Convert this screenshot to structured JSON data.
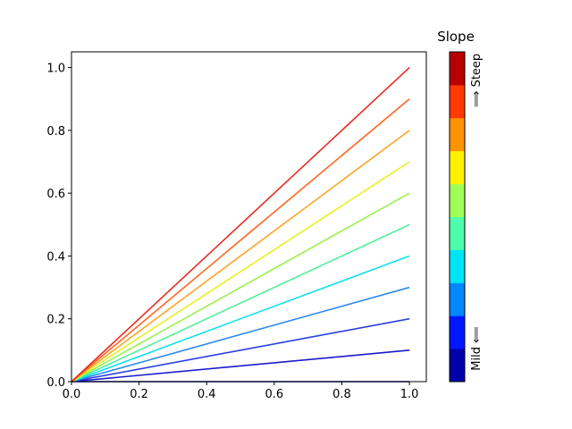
{
  "chart_data": {
    "type": "line",
    "x": [
      0,
      1
    ],
    "series": [
      {
        "color": "#00008f",
        "values": [
          0,
          0
        ]
      },
      {
        "color": "#1a1acc",
        "values": [
          0,
          0.1
        ]
      },
      {
        "color": "#2a3ee0",
        "values": [
          0,
          0.2
        ]
      },
      {
        "color": "#2a8aee",
        "values": [
          0,
          0.3
        ]
      },
      {
        "color": "#10e0ee",
        "values": [
          0,
          0.4
        ]
      },
      {
        "color": "#50f09a",
        "values": [
          0,
          0.5
        ]
      },
      {
        "color": "#9cf050",
        "values": [
          0,
          0.6
        ]
      },
      {
        "color": "#e8f020",
        "values": [
          0,
          0.7
        ]
      },
      {
        "color": "#ffa424",
        "values": [
          0,
          0.8
        ]
      },
      {
        "color": "#ff6420",
        "values": [
          0,
          0.9
        ]
      },
      {
        "color": "#e82a22",
        "values": [
          0,
          1.0
        ]
      }
    ],
    "xlim": [
      0,
      1.05
    ],
    "ylim": [
      0,
      1.05
    ],
    "xticks": [
      {
        "value": 0,
        "label": "0.0"
      },
      0.2,
      0.4,
      0.6,
      0.8,
      {
        "value": 1,
        "label": "1.0"
      }
    ],
    "yticks": [
      {
        "value": 0,
        "label": "0.0"
      },
      0.2,
      0.4,
      0.6,
      0.8,
      {
        "value": 1,
        "label": "1.0"
      }
    ],
    "colorbar": {
      "title": "Slope",
      "low_label": "Mild ⟸",
      "high_label": "⟹ Steep",
      "colors": [
        "#0000aa",
        "#0018ff",
        "#0088ff",
        "#00e4f8",
        "#4dffaa",
        "#a0ff56",
        "#fff200",
        "#ff9400",
        "#ff3a00",
        "#b80000"
      ]
    }
  }
}
